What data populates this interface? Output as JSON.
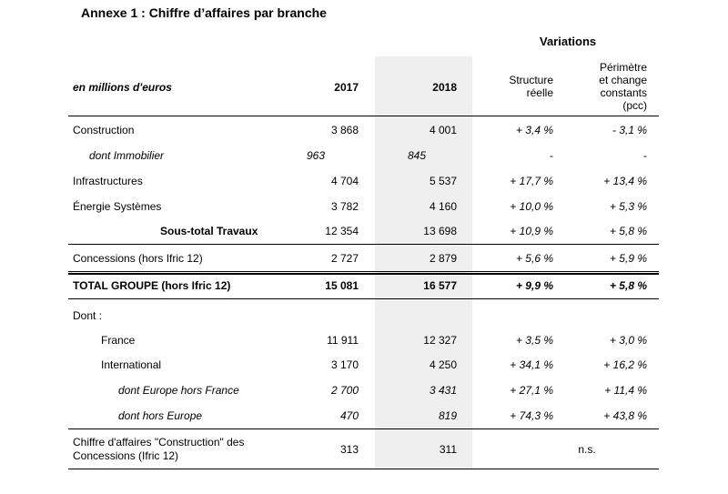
{
  "title": "Annexe 1 : Chiffre d’affaires par branche",
  "header": {
    "variations": "Variations",
    "unit": "en millions d'euros",
    "y2017": "2017",
    "y2018": "2018",
    "structure": "Structure\nréelle",
    "pcc": "Périmètre\net change\nconstants\n(pcc)"
  },
  "rows": [
    {
      "label": "Construction",
      "v2017": "3 868",
      "v2018": "4 001",
      "struct": "+ 3,4 %",
      "pcc": "- 3,1 %"
    },
    {
      "label": "dont Immobilier",
      "v2017": "963",
      "v2018": "845",
      "struct": "-",
      "pcc": "-"
    },
    {
      "label": "Infrastructures",
      "v2017": "4 704",
      "v2018": "5 537",
      "struct": "+ 17,7 %",
      "pcc": "+ 13,4 %"
    },
    {
      "label": "Énergie Systèmes",
      "v2017": "3 782",
      "v2018": "4 160",
      "struct": "+ 10,0 %",
      "pcc": "+ 5,3 %"
    },
    {
      "label": "Sous-total Travaux",
      "v2017": "12 354",
      "v2018": "13 698",
      "struct": "+ 10,9 %",
      "pcc": "+ 5,8 %"
    },
    {
      "label": "Concessions (hors Ifric 12)",
      "v2017": "2 727",
      "v2018": "2 879",
      "struct": "+ 5,6 %",
      "pcc": "+ 5,9 %"
    },
    {
      "label": "TOTAL GROUPE (hors Ifric 12)",
      "v2017": "15 081",
      "v2018": "16 577",
      "struct": "+ 9,9 %",
      "pcc": "+ 5,8 %"
    },
    {
      "label": "Dont :"
    },
    {
      "label": "France",
      "v2017": "11 911",
      "v2018": "12 327",
      "struct": "+ 3,5 %",
      "pcc": "+ 3,0 %"
    },
    {
      "label": "International",
      "v2017": "3 170",
      "v2018": "4 250",
      "struct": "+ 34,1 %",
      "pcc": "+ 16,2 %"
    },
    {
      "label": "dont Europe hors France",
      "v2017": "2 700",
      "v2018": "3 431",
      "struct": "+ 27,1 %",
      "pcc": "+ 11,4 %"
    },
    {
      "label": "dont hors Europe",
      "v2017": "470",
      "v2018": "819",
      "struct": "+ 74,3 %",
      "pcc": "+ 43,8 %"
    },
    {
      "label": "Chiffre d'affaires \"Construction\" des\nConcessions (Ifric 12)",
      "v2017": "313",
      "v2018": "311",
      "ns": "n.s."
    }
  ]
}
